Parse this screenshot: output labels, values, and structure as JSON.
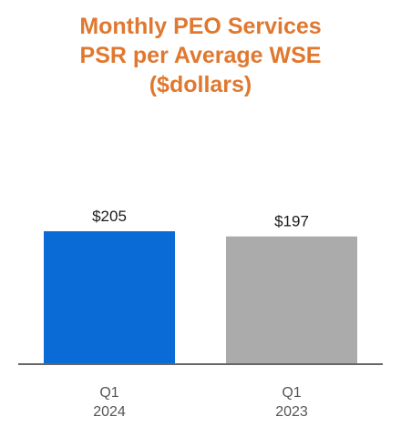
{
  "chart_data": {
    "type": "bar",
    "title": [
      "Monthly PEO Services",
      "PSR per Average WSE",
      "($dollars)"
    ],
    "categories": [
      [
        "Q1",
        "2024"
      ],
      [
        "Q1",
        "2023"
      ]
    ],
    "values": [
      205,
      197
    ],
    "data_labels": [
      "$205",
      "$197"
    ],
    "bar_colors": [
      "#0a6bd6",
      "#ababab"
    ],
    "title_color": "#e0782f",
    "ylim": [
      0,
      205
    ],
    "grid": false,
    "legend": "none"
  }
}
